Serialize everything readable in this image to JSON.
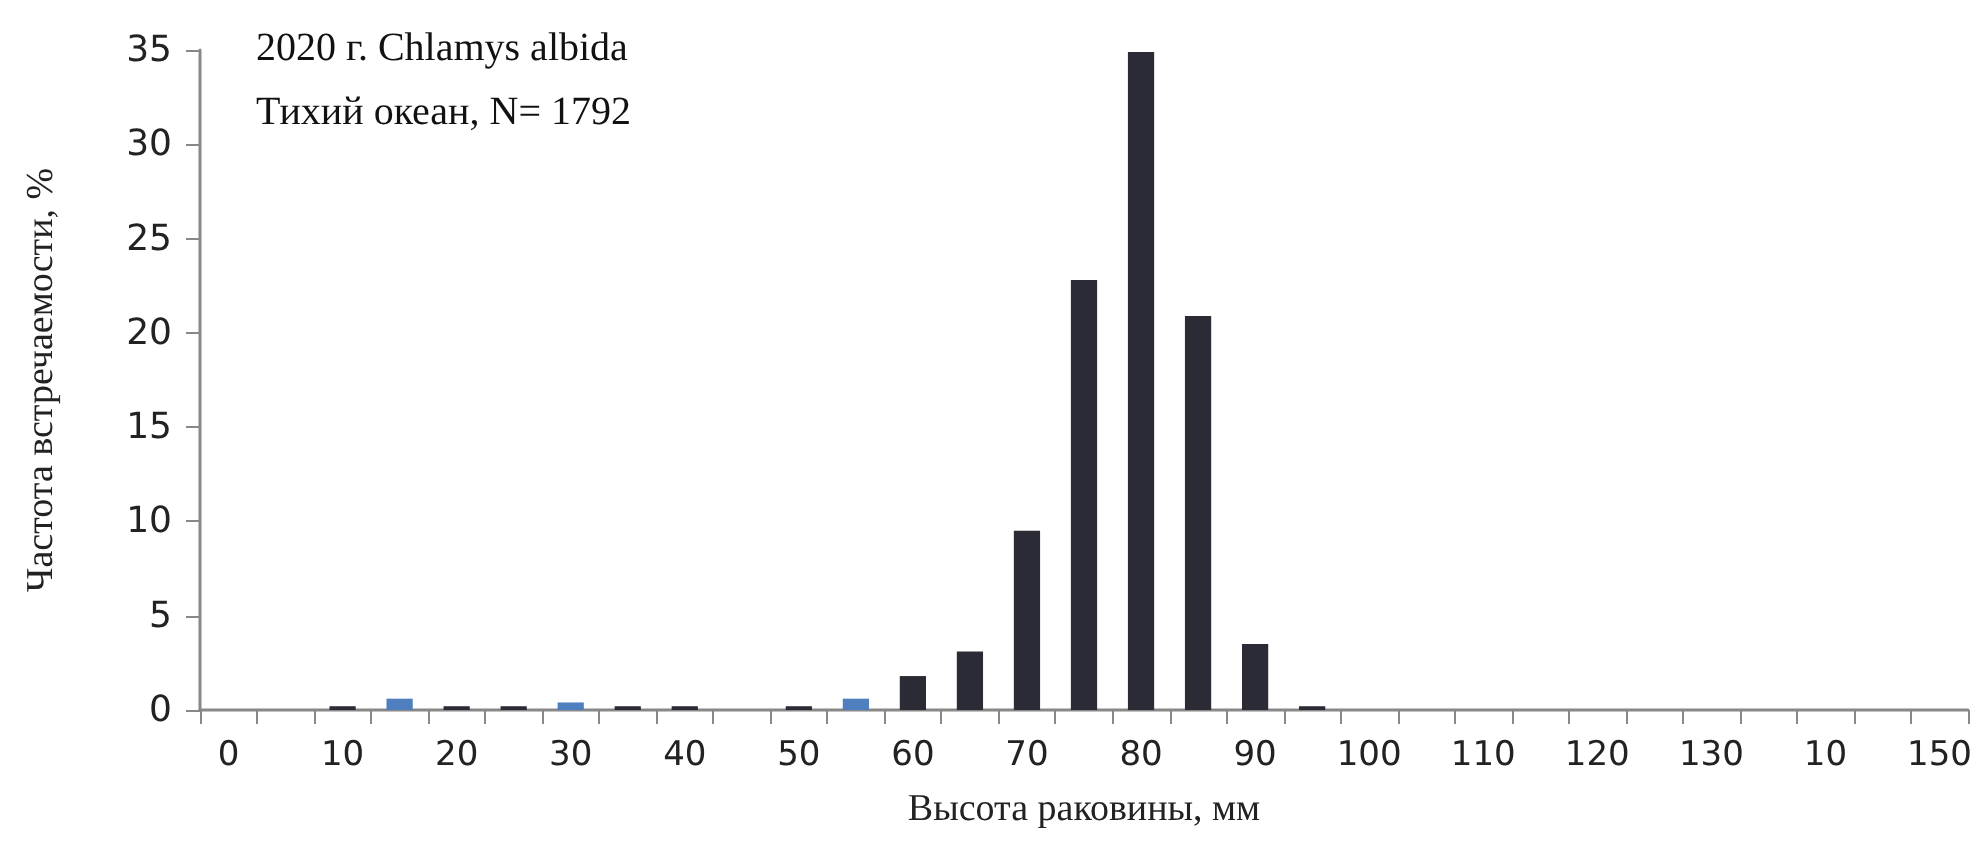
{
  "chart_data": {
    "type": "bar",
    "xlabel": "Высота раковины, мм",
    "ylabel": "Частота встречаемости, %",
    "annotations": [
      "2020 г. Chlamys albida",
      "Тихий океан, N= 1792"
    ],
    "categories": [
      "0",
      null,
      "10",
      null,
      "20",
      null,
      "30",
      null,
      "40",
      null,
      "50",
      null,
      "60",
      null,
      "70",
      null,
      "80",
      null,
      "90",
      null,
      "100",
      null,
      "110",
      null,
      "120",
      null,
      "130",
      null,
      "10",
      null,
      "150"
    ],
    "values": [
      null,
      null,
      0.2,
      0.6,
      0.2,
      0.2,
      0.4,
      0.2,
      0.2,
      null,
      0.2,
      0.6,
      1.8,
      3.1,
      9.5,
      22.8,
      34.9,
      20.9,
      3.5,
      0.2,
      null,
      null,
      null,
      null,
      null,
      null,
      null,
      null,
      null,
      null,
      null
    ],
    "colors": [
      "#2b2b36",
      "#2b2b36",
      "#2b2b36",
      "#4f7fbf",
      "#2b2b36",
      "#2b2b36",
      "#4f7fbf",
      "#2b2b36",
      "#2b2b36",
      "#2b2b36",
      "#2b2b36",
      "#4f7fbf",
      "#2b2b36",
      "#2b2b36",
      "#2b2b36",
      "#2b2b36",
      "#2b2b36",
      "#2b2b36",
      "#2b2b36",
      "#2b2b36",
      "#2b2b36",
      "#2b2b36",
      "#2b2b36",
      "#2b2b36",
      "#2b2b36",
      "#2b2b36",
      "#2b2b36",
      "#2b2b36",
      "#2b2b36",
      "#2b2b36",
      "#2b2b36"
    ],
    "ylim": [
      0,
      35
    ],
    "yticks": [
      0,
      5,
      10,
      15,
      20,
      25,
      30,
      35
    ],
    "grid": false
  }
}
